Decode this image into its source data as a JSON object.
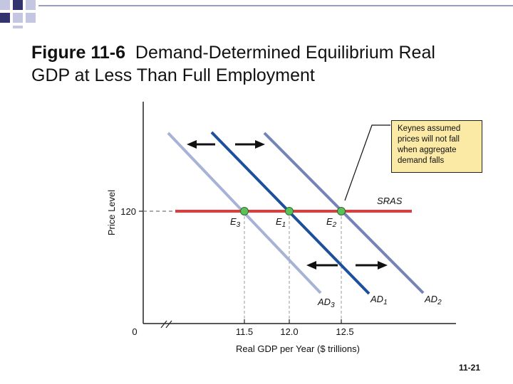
{
  "title": {
    "figure_label": "Figure 11-6",
    "text_line1": "Demand-Determined Equilibrium Real",
    "text_line2": "GDP at Less Than Full Employment"
  },
  "chart_data": {
    "type": "line",
    "xlabel": "Real GDP per Year ($ trillions)",
    "ylabel": "Price Level",
    "x_origin_label": "0",
    "x_ticks": [
      "11.5",
      "12.0",
      "12.5"
    ],
    "y_ticks": [
      "120"
    ],
    "series": [
      {
        "name": "SRAS",
        "color": "#e03a3a"
      },
      {
        "name": "AD",
        "sub": "3",
        "color": "#a7b3d6"
      },
      {
        "name": "AD",
        "sub": "1",
        "color": "#1c4f9c"
      },
      {
        "name": "AD",
        "sub": "2",
        "color": "#7683b6"
      }
    ],
    "points": [
      {
        "name": "E",
        "sub": "3",
        "x": "11.5",
        "y": "120"
      },
      {
        "name": "E",
        "sub": "1",
        "x": "12.0",
        "y": "120"
      },
      {
        "name": "E",
        "sub": "2",
        "x": "12.5",
        "y": "120"
      }
    ],
    "annotation": "Keynes assumed prices will not fall when aggregate demand falls"
  },
  "page_number": "11-21",
  "colors": {
    "deco_dark": "#33336e",
    "deco_light": "#c4c6e2",
    "callout_bg": "#fbe9a6",
    "point_fill": "#5cc05c"
  }
}
